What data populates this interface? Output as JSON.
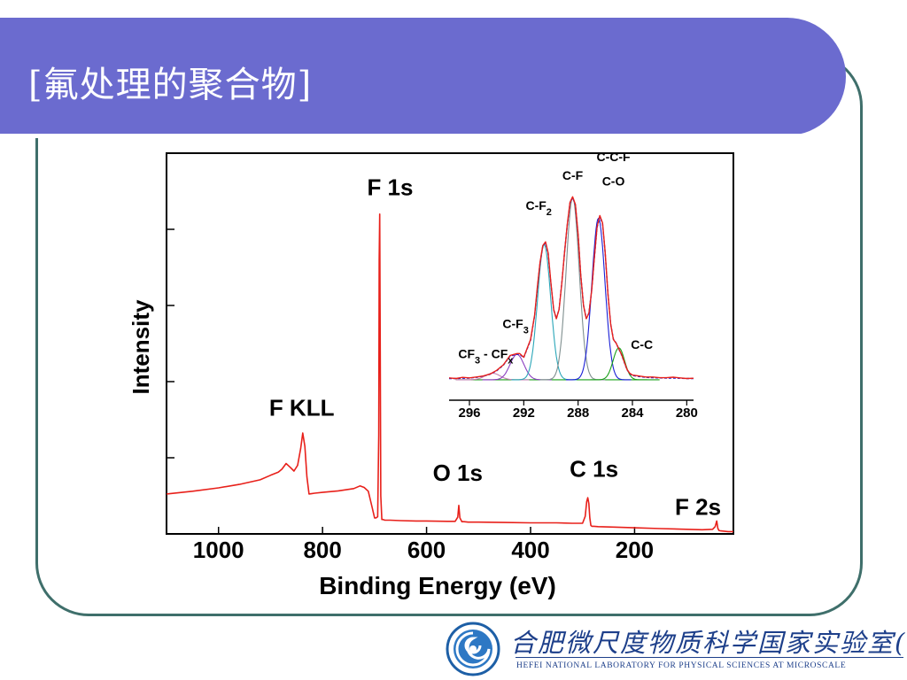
{
  "slide": {
    "title": "[氟处理的聚合物]"
  },
  "chart_data": [
    {
      "type": "line",
      "title": "",
      "xlabel": "Binding Energy (eV)",
      "ylabel": "Intensity",
      "xlim": [
        1100,
        10
      ],
      "ylim": [
        0,
        100
      ],
      "xticks": [
        1000,
        800,
        600,
        400,
        200
      ],
      "yticks": [
        20,
        40,
        60,
        80
      ],
      "y_tick_labels_shown": false,
      "series": [
        {
          "color": "#e8201a",
          "x": [
            1100,
            1050,
            1000,
            960,
            920,
            900,
            885,
            878,
            870,
            862,
            855,
            848,
            842,
            838,
            834,
            830,
            826,
            820,
            815,
            800,
            770,
            740,
            728,
            720,
            712,
            705,
            700,
            697,
            694,
            692,
            691,
            690,
            689,
            688,
            686,
            684,
            680,
            670,
            650,
            620,
            600,
            560,
            545,
            540,
            538,
            536,
            532,
            528,
            520,
            500,
            450,
            400,
            350,
            320,
            300,
            295,
            292,
            290,
            288,
            286,
            284,
            282,
            278,
            270,
            240,
            200,
            150,
            100,
            70,
            50,
            45,
            42,
            40,
            38,
            34,
            20,
            10
          ],
          "y": [
            10.5,
            11.2,
            12.1,
            13.0,
            14.2,
            15.4,
            16.2,
            17.0,
            18.5,
            17.5,
            16.5,
            18.0,
            22.5,
            26.5,
            23.0,
            15.0,
            10.5,
            10.6,
            10.7,
            10.9,
            11.3,
            11.9,
            12.6,
            12.2,
            11.2,
            7.2,
            4.2,
            4.2,
            4.5,
            26,
            72,
            84,
            48,
            10,
            3.8,
            3.8,
            3.6,
            3.6,
            3.5,
            3.4,
            3.4,
            3.3,
            3.3,
            4.4,
            7.5,
            4.2,
            3.2,
            3.2,
            3.1,
            3.1,
            3.0,
            2.9,
            2.9,
            2.8,
            2.8,
            4.6,
            8.5,
            9.5,
            8.0,
            4.2,
            2.2,
            2.0,
            2.0,
            1.9,
            1.8,
            1.6,
            1.4,
            1.2,
            1.1,
            1.2,
            1.9,
            3.4,
            1.5,
            0.9,
            0.8,
            0.6,
            0.6
          ]
        }
      ],
      "annotations": [
        {
          "text": "F 1s",
          "x": 670,
          "y": 89
        },
        {
          "text": "F KLL",
          "x": 840,
          "y": 31
        },
        {
          "text": "O 1s",
          "x": 540,
          "y": 14
        },
        {
          "text": "C 1s",
          "x": 278,
          "y": 15
        },
        {
          "text": "F 2s",
          "x": 78,
          "y": 5
        }
      ]
    },
    {
      "type": "line",
      "title": "",
      "xlabel": "",
      "ylabel": "",
      "xlim": [
        297.5,
        279.5
      ],
      "ylim": [
        0,
        100
      ],
      "xticks": [
        296,
        292,
        288,
        284,
        280
      ],
      "series": [
        {
          "color": "#e8201a",
          "x": [
            297.5,
            297,
            296.5,
            296,
            295.5,
            295,
            294.5,
            294,
            293.5,
            293,
            292.5,
            292.3,
            292,
            291.5,
            291.2,
            291,
            290.8,
            290.6,
            290.4,
            290.2,
            290,
            289.8,
            289.6,
            289.4,
            289.2,
            289,
            288.8,
            288.6,
            288.4,
            288.2,
            288,
            287.8,
            287.6,
            287.4,
            287.2,
            287,
            286.8,
            286.6,
            286.4,
            286.2,
            286,
            285.8,
            285.6,
            285.4,
            285.2,
            285,
            284.8,
            284.6,
            284.4,
            284.2,
            284,
            283.5,
            283,
            282.5,
            282,
            281.5,
            281,
            280.5,
            280,
            279.5
          ],
          "y": [
            1.5,
            1.2,
            1.8,
            1.5,
            2.0,
            2.5,
            3.5,
            5.5,
            8.5,
            13.5,
            14.5,
            14.5,
            12.5,
            22,
            35,
            50,
            63,
            72,
            74,
            68,
            52,
            38,
            33,
            38,
            52,
            68,
            83,
            95,
            98,
            94,
            78,
            56,
            40,
            33,
            36,
            48,
            66,
            82,
            88,
            84,
            68,
            46,
            30,
            22,
            20,
            17,
            14,
            10,
            6,
            4,
            3,
            2.5,
            2.0,
            2.0,
            1.6,
            1.6,
            1.9,
            1.5,
            1.2,
            1.3
          ]
        },
        {
          "color": "#1a1fd6",
          "x": [
            297.5,
            297,
            296.5,
            296,
            295.5,
            295,
            294.5,
            294,
            293.5,
            293,
            292.5,
            292.3,
            292,
            291.5,
            291.2,
            291,
            290.8,
            290.6,
            290.4,
            290.2,
            290,
            289.8,
            289.6,
            289.4,
            289.2,
            289,
            288.8,
            288.6,
            288.4,
            288.2,
            288,
            287.8,
            287.6,
            287.4,
            287.2,
            287,
            286.8,
            286.6,
            286.4,
            286.2,
            286,
            285.8,
            285.6,
            285.4,
            285.2,
            285,
            284.8,
            284.6,
            284.4,
            284.2,
            284,
            283.5,
            283,
            282.5,
            282,
            281.5,
            281,
            280.5,
            280,
            279.5
          ],
          "y": [
            1.2,
            1.2,
            1.3,
            1.4,
            1.8,
            2.4,
            3.4,
            5.3,
            8.3,
            13.2,
            14.1,
            14.1,
            12.3,
            21.6,
            34.6,
            49.6,
            62.6,
            71.6,
            73.6,
            67.6,
            51.6,
            37.8,
            33.2,
            38.1,
            52.1,
            68.1,
            82.6,
            94.6,
            97.6,
            93.6,
            77.8,
            55.8,
            40.2,
            33.2,
            36.1,
            48.1,
            65.8,
            81.6,
            87.4,
            83.6,
            67.8,
            46.2,
            30.1,
            22.2,
            20.1,
            16.8,
            13.8,
            9.8,
            5.9,
            3.8,
            2.8,
            2.2,
            1.8,
            1.6,
            1.5,
            1.4,
            1.4,
            1.3,
            1.2,
            1.2
          ]
        }
      ],
      "components": [
        {
          "name": "CF3 - CFx",
          "center": 294.3,
          "height": 3.5,
          "width": 0.9,
          "color": "#c27fb0"
        },
        {
          "name": "C-F3",
          "center": 292.5,
          "height": 13.5,
          "width": 0.85,
          "color": "#8a3fc0"
        },
        {
          "name": "C-F2",
          "center": 290.5,
          "height": 72,
          "width": 0.8,
          "color": "#2aa6b8"
        },
        {
          "name": "C-F",
          "center": 288.4,
          "height": 97,
          "width": 0.8,
          "color": "#7f8f8f"
        },
        {
          "name": "C-C-F",
          "center": 286.5,
          "height": 86,
          "width": 0.8,
          "color": "#1a1fd6"
        },
        {
          "name": "C-C",
          "center": 285.0,
          "height": 17,
          "width": 0.7,
          "color": "#18a018"
        }
      ],
      "baseline_color": "#18a018",
      "annotations": [
        {
          "text": "C-C-F",
          "x": 285.4,
          "y": 117
        },
        {
          "text": "C-O",
          "x": 285.4,
          "y": 104
        },
        {
          "text": "C-F",
          "x": 288.4,
          "y": 107
        },
        {
          "text": "C-F2",
          "x": 290.9,
          "y": 91
        },
        {
          "text": "C-F3",
          "x": 292.6,
          "y": 28
        },
        {
          "text": "CF3 - CFx",
          "x": 294.8,
          "y": 12
        },
        {
          "text": "C-C",
          "x": 283.3,
          "y": 17
        }
      ]
    }
  ],
  "logo": {
    "name_cn": "合肥微尺度物质科学国家实验室(筹)",
    "name_en": "HEFEI NATIONAL LABORATORY FOR PHYSICAL SCIENCES AT MICROSCALE"
  }
}
